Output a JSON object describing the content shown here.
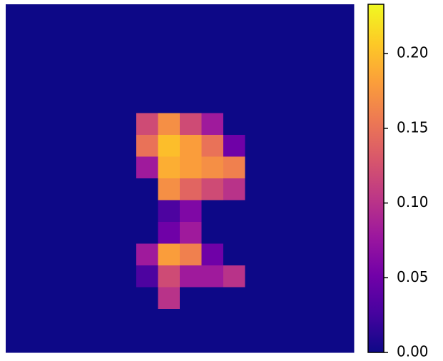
{
  "chart_data": {
    "type": "heatmap",
    "colormap": "plasma",
    "z": [
      [
        0,
        0,
        0,
        0,
        0,
        0,
        0,
        0,
        0,
        0,
        0,
        0,
        0,
        0,
        0,
        0
      ],
      [
        0,
        0,
        0,
        0,
        0,
        0,
        0,
        0,
        0,
        0,
        0,
        0,
        0,
        0,
        0,
        0
      ],
      [
        0,
        0,
        0,
        0,
        0,
        0,
        0,
        0,
        0,
        0,
        0,
        0,
        0,
        0,
        0,
        0
      ],
      [
        0,
        0,
        0,
        0,
        0,
        0,
        0,
        0,
        0,
        0,
        0,
        0,
        0,
        0,
        0,
        0
      ],
      [
        0,
        0,
        0,
        0,
        0,
        0,
        0,
        0,
        0,
        0,
        0,
        0,
        0,
        0,
        0,
        0
      ],
      [
        0,
        0,
        0,
        0,
        0,
        0,
        0.12,
        0.17,
        0.12,
        0.08,
        0,
        0,
        0,
        0,
        0,
        0
      ],
      [
        0,
        0,
        0,
        0,
        0,
        0,
        0.15,
        0.2,
        0.18,
        0.15,
        0.05,
        0,
        0,
        0,
        0,
        0
      ],
      [
        0,
        0,
        0,
        0,
        0,
        0,
        0.08,
        0.19,
        0.18,
        0.17,
        0.16,
        0,
        0,
        0,
        0,
        0
      ],
      [
        0,
        0,
        0,
        0,
        0,
        0,
        0,
        0.17,
        0.14,
        0.12,
        0.1,
        0,
        0,
        0,
        0,
        0
      ],
      [
        0,
        0,
        0,
        0,
        0,
        0,
        0,
        0.03,
        0.06,
        0,
        0,
        0,
        0,
        0,
        0,
        0
      ],
      [
        0,
        0,
        0,
        0,
        0,
        0,
        0,
        0.05,
        0.08,
        0,
        0,
        0,
        0,
        0,
        0,
        0
      ],
      [
        0,
        0,
        0,
        0,
        0,
        0,
        0.08,
        0.18,
        0.16,
        0.05,
        0,
        0,
        0,
        0,
        0,
        0
      ],
      [
        0,
        0,
        0,
        0,
        0,
        0,
        0.03,
        0.12,
        0.08,
        0.08,
        0.1,
        0,
        0,
        0,
        0,
        0
      ],
      [
        0,
        0,
        0,
        0,
        0,
        0,
        0,
        0.1,
        0,
        0,
        0,
        0,
        0,
        0,
        0,
        0
      ],
      [
        0,
        0,
        0,
        0,
        0,
        0,
        0,
        0,
        0,
        0,
        0,
        0,
        0,
        0,
        0,
        0
      ],
      [
        0,
        0,
        0,
        0,
        0,
        0,
        0,
        0,
        0,
        0,
        0,
        0,
        0,
        0,
        0,
        0
      ]
    ],
    "colorbar_lim": [
      0,
      0.233
    ],
    "colorbar_ticks": [
      {
        "value": 0,
        "label": "0.00"
      },
      0.05,
      {
        "value": 0.1,
        "label": "0.10"
      },
      0.15,
      {
        "value": 0.2,
        "label": "0.20"
      }
    ]
  }
}
